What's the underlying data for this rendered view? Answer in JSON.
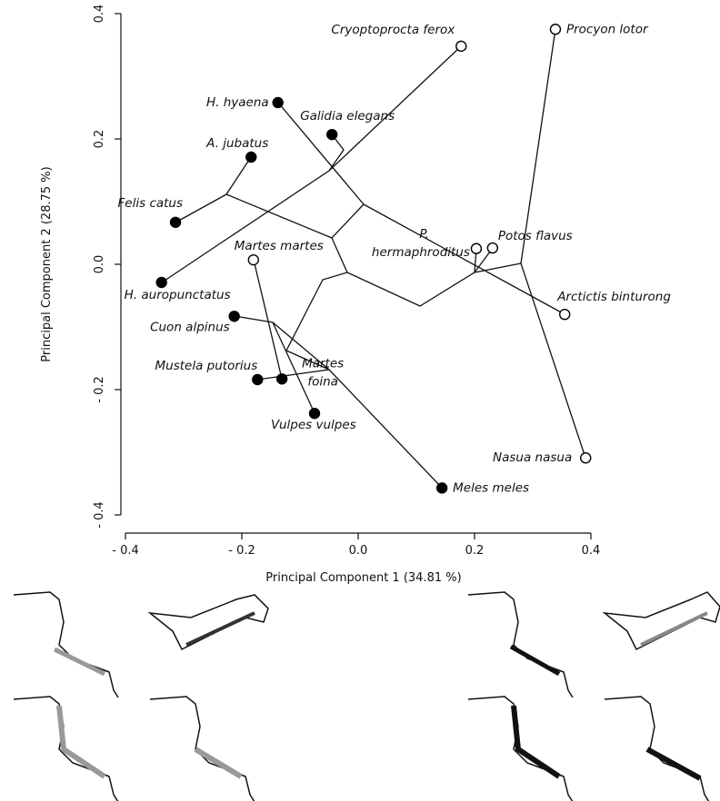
{
  "chart_data": {
    "type": "scatter",
    "x_label": "Principal Component 1 (34.81 %)",
    "y_label": "Principal Component 2 (28.75 %)",
    "labels": [
      "Cryoptoprocta ferox",
      "Procyon lotor",
      "H. hyaena",
      "Galidia elegans",
      "A. jubatus",
      "Felis catus",
      "H. auropunctatus",
      "Martes martes",
      "P. hermaphroditus",
      "Potos flavus",
      "Arctictis binturong",
      "Cuon alpinus",
      "Mustela putorius",
      "Martes foina",
      "Vulpes vulpes",
      "Nasua nasua",
      "Meles meles"
    ],
    "x": [
      0.177,
      0.339,
      -0.138,
      -0.045,
      -0.184,
      -0.314,
      -0.338,
      -0.18,
      0.203,
      0.231,
      0.355,
      -0.213,
      -0.173,
      -0.131,
      -0.075,
      0.391,
      0.144
    ],
    "y": [
      0.348,
      0.375,
      0.258,
      0.207,
      0.171,
      0.067,
      -0.029,
      0.007,
      0.025,
      0.026,
      -0.08,
      -0.083,
      -0.184,
      -0.183,
      -0.238,
      -0.309,
      -0.357
    ],
    "marker_colors": [
      "#fff",
      "#fff",
      "#000",
      "#000",
      "#000",
      "#000",
      "#000",
      "#fff",
      "#fff",
      "#fff",
      "#fff",
      "#000",
      "#000",
      "#000",
      "#000",
      "#fff",
      "#000"
    ],
    "xlim": [
      -0.4,
      0.4
    ],
    "ylim": [
      -0.4,
      0.4
    ],
    "xticks": [
      {
        "value": -0.4,
        "label": "- 0.4"
      },
      {
        "value": -0.2,
        "label": "- 0.2"
      },
      {
        "value": 0,
        "label": "0.0"
      },
      0.2,
      0.4
    ],
    "yticks": [
      {
        "value": -0.4,
        "label": "- 0.4"
      },
      {
        "value": -0.2,
        "label": "- 0.2"
      },
      {
        "value": 0,
        "label": "0.0"
      },
      0.2,
      0.4
    ]
  }
}
